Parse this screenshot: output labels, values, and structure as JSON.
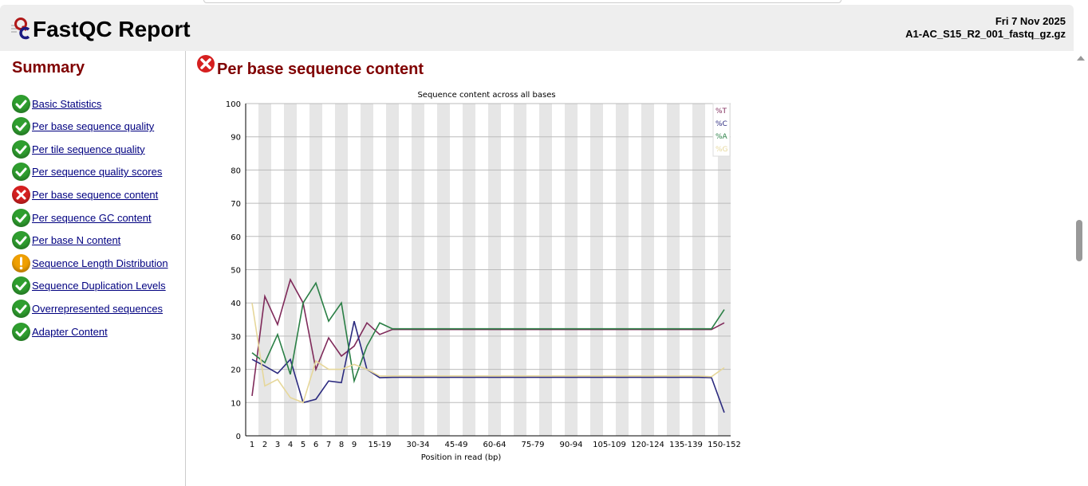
{
  "header": {
    "title": "FastQC Report",
    "date": "Fri 7 Nov 2025",
    "filename": "A1-AC_S15_R2_001_fastq_gz.gz"
  },
  "sidebar": {
    "title": "Summary",
    "items": [
      {
        "label": "Basic Statistics",
        "status": "pass"
      },
      {
        "label": "Per base sequence quality",
        "status": "pass"
      },
      {
        "label": "Per tile sequence quality",
        "status": "pass"
      },
      {
        "label": "Per sequence quality scores",
        "status": "pass"
      },
      {
        "label": "Per base sequence content",
        "status": "fail"
      },
      {
        "label": "Per sequence GC content",
        "status": "pass"
      },
      {
        "label": "Per base N content",
        "status": "pass"
      },
      {
        "label": "Sequence Length Distribution",
        "status": "warn"
      },
      {
        "label": "Sequence Duplication Levels",
        "status": "pass"
      },
      {
        "label": "Overrepresented sequences",
        "status": "pass"
      },
      {
        "label": "Adapter Content",
        "status": "pass"
      }
    ]
  },
  "main": {
    "section_title": "Per base sequence content",
    "status": "fail"
  },
  "chart_data": {
    "type": "line",
    "title": "Sequence content across all bases",
    "xlabel": "Position in read (bp)",
    "ylabel": "",
    "ylim": [
      0,
      100
    ],
    "yticks": [
      0,
      10,
      20,
      30,
      40,
      50,
      60,
      70,
      80,
      90,
      100
    ],
    "grid": true,
    "legend": "top-right",
    "categories": [
      "1",
      "2",
      "3",
      "4",
      "5",
      "6",
      "7",
      "8",
      "9",
      "10-14",
      "15-19",
      "20-24",
      "25-29",
      "30-34",
      "35-39",
      "40-44",
      "45-49",
      "50-54",
      "55-59",
      "60-64",
      "65-69",
      "70-74",
      "75-79",
      "80-84",
      "85-89",
      "90-94",
      "95-99",
      "100-104",
      "105-109",
      "110-114",
      "115-119",
      "120-124",
      "125-129",
      "130-134",
      "135-139",
      "140-144",
      "145-149",
      "150-152"
    ],
    "xtick_labels": [
      "1",
      "2",
      "3",
      "4",
      "5",
      "6",
      "7",
      "8",
      "9",
      "15-19",
      "30-34",
      "45-49",
      "60-64",
      "75-79",
      "90-94",
      "105-109",
      "120-124",
      "135-139",
      "150-152"
    ],
    "series": [
      {
        "name": "%T",
        "color": "#7f2a5a",
        "values": [
          12,
          42,
          33.5,
          47,
          40,
          20,
          29.5,
          24,
          27,
          34,
          30.5,
          32,
          32,
          32,
          32,
          32,
          32,
          32,
          32,
          32,
          32,
          32,
          32,
          32,
          32,
          32,
          32,
          32,
          32,
          32,
          32,
          32,
          32,
          32,
          32,
          32,
          32,
          34
        ]
      },
      {
        "name": "%C",
        "color": "#2b2a7f",
        "values": [
          23,
          21,
          18.8,
          23,
          10,
          11,
          16.5,
          16,
          34.5,
          20,
          17.5,
          17.6,
          17.6,
          17.6,
          17.6,
          17.6,
          17.6,
          17.6,
          17.6,
          17.6,
          17.6,
          17.6,
          17.6,
          17.6,
          17.6,
          17.6,
          17.6,
          17.6,
          17.6,
          17.6,
          17.6,
          17.6,
          17.6,
          17.6,
          17.6,
          17.6,
          17.5,
          7
        ]
      },
      {
        "name": "%A",
        "color": "#2a7f45",
        "values": [
          25,
          22,
          30.5,
          18.5,
          40,
          46,
          34.5,
          40,
          16.5,
          27,
          34,
          32.2,
          32.2,
          32.2,
          32.2,
          32.2,
          32.2,
          32.2,
          32.2,
          32.2,
          32.2,
          32.2,
          32.2,
          32.2,
          32.2,
          32.2,
          32.2,
          32.2,
          32.2,
          32.2,
          32.2,
          32.2,
          32.2,
          32.2,
          32.2,
          32.2,
          32.2,
          38
        ]
      },
      {
        "name": "%G",
        "color": "#e6d79a",
        "values": [
          40,
          15,
          17,
          11.5,
          10,
          22.5,
          20,
          20,
          21.5,
          20,
          18,
          18,
          18,
          18,
          18,
          18,
          18,
          18,
          18,
          18,
          18,
          18,
          18,
          18,
          18,
          18,
          18,
          18,
          18,
          18,
          18,
          18,
          18,
          18,
          18,
          18,
          17.8,
          20.5
        ]
      }
    ]
  }
}
